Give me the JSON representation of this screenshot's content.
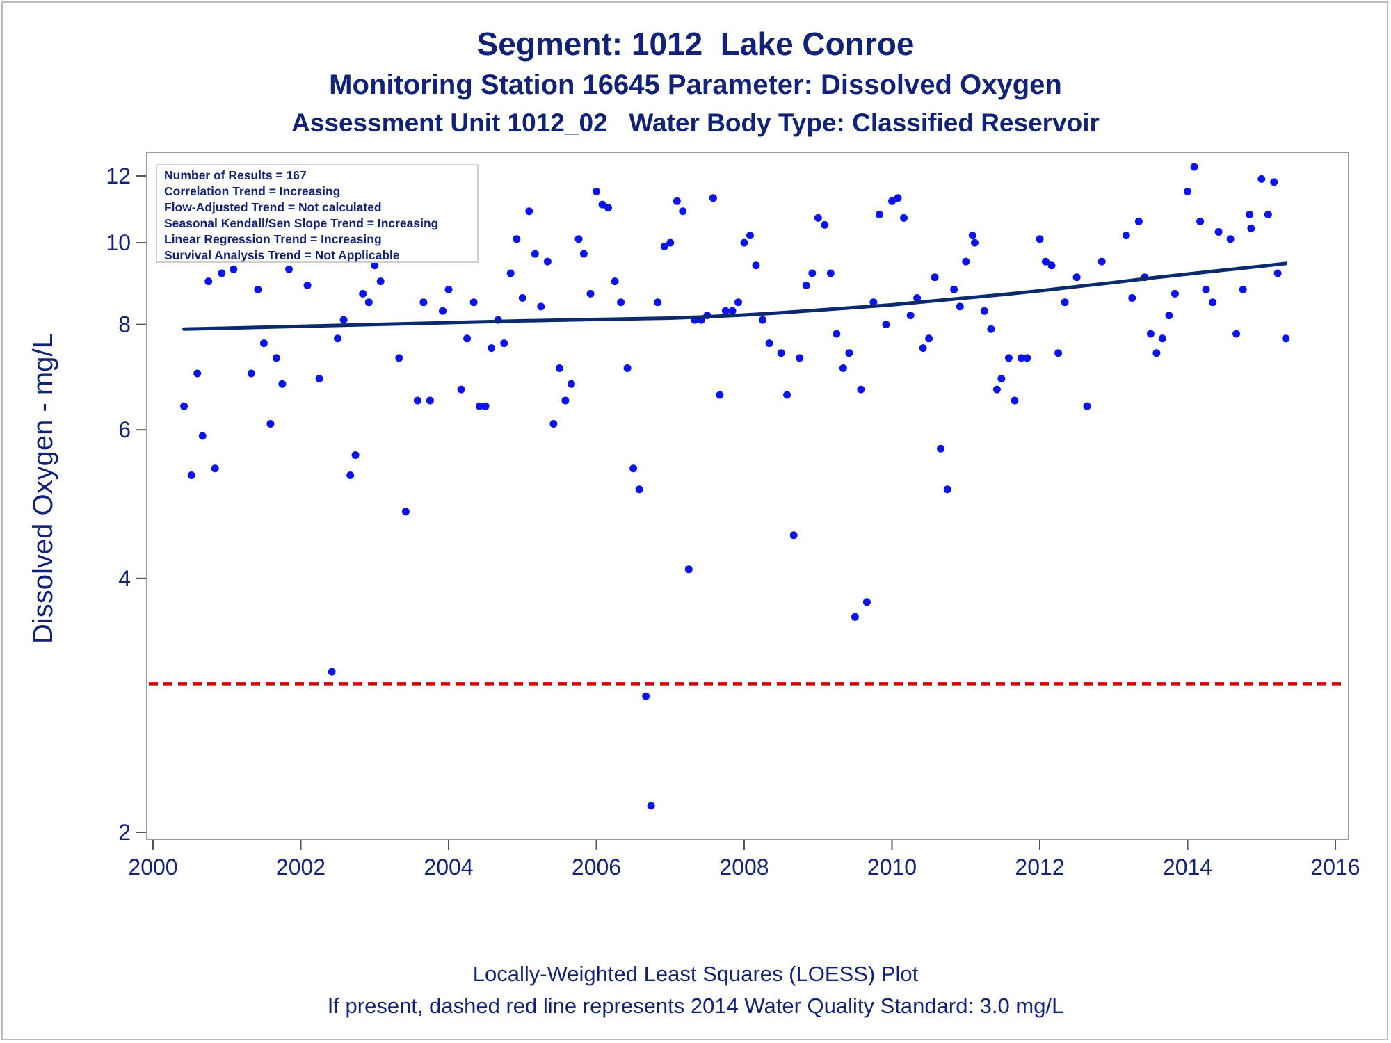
{
  "chart_data": {
    "type": "scatter",
    "title": "Segment: 1012  Lake Conroe",
    "subtitles": [
      "Monitoring Station 16645 Parameter: Dissolved Oxygen",
      "Assessment Unit 1012_02   Water Body Type: Classified Reservoir"
    ],
    "xlabel": "",
    "ylabel": "Dissolved Oxygen - mg/L",
    "xlim": [
      2000,
      2016.1
    ],
    "ylim": [
      1.9,
      12.8
    ],
    "y_scale": "log",
    "x_ticks": [
      2000,
      2002,
      2004,
      2006,
      2008,
      2010,
      2012,
      2014,
      2016
    ],
    "y_ticks": [
      2,
      4,
      6,
      8,
      10,
      12
    ],
    "grid": false,
    "legend": "none",
    "stats_box": {
      "placement": "top-left",
      "lines": [
        "Number of Results = 167",
        "Correlation Trend = Increasing",
        "Flow-Adjusted Trend = Not calculated",
        "Seasonal Kendall/Sen Slope Trend = Increasing",
        "Linear Regression Trend = Increasing",
        "Survival Analysis Trend = Not Applicable"
      ]
    },
    "series": [
      {
        "kind": "points",
        "color": "#0a14e6",
        "points": [
          [
            2000.42,
            6.4
          ],
          [
            2000.52,
            5.3
          ],
          [
            2000.6,
            7.0
          ],
          [
            2000.67,
            5.9
          ],
          [
            2000.75,
            9.0
          ],
          [
            2000.84,
            5.4
          ],
          [
            2000.93,
            9.2
          ],
          [
            2001.0,
            11.1
          ],
          [
            2001.09,
            9.3
          ],
          [
            2001.17,
            9.7
          ],
          [
            2001.26,
            11.1
          ],
          [
            2001.33,
            7.0
          ],
          [
            2001.42,
            8.8
          ],
          [
            2001.5,
            7.6
          ],
          [
            2001.59,
            6.1
          ],
          [
            2001.67,
            7.3
          ],
          [
            2001.75,
            6.8
          ],
          [
            2001.84,
            9.3
          ],
          [
            2002.0,
            10.0
          ],
          [
            2002.09,
            8.9
          ],
          [
            2002.17,
            9.8
          ],
          [
            2002.25,
            6.9
          ],
          [
            2002.42,
            3.1
          ],
          [
            2002.5,
            7.7
          ],
          [
            2002.58,
            8.1
          ],
          [
            2002.67,
            5.3
          ],
          [
            2002.74,
            5.6
          ],
          [
            2002.84,
            8.7
          ],
          [
            2002.92,
            8.5
          ],
          [
            2003.0,
            9.4
          ],
          [
            2003.08,
            9.0
          ],
          [
            2003.16,
            10.4
          ],
          [
            2003.25,
            9.6
          ],
          [
            2003.33,
            7.3
          ],
          [
            2003.42,
            4.8
          ],
          [
            2003.58,
            6.5
          ],
          [
            2003.66,
            8.5
          ],
          [
            2003.75,
            6.5
          ],
          [
            2003.84,
            10.4
          ],
          [
            2003.92,
            8.3
          ],
          [
            2004.0,
            8.8
          ],
          [
            2004.09,
            10.3
          ],
          [
            2004.17,
            6.7
          ],
          [
            2004.25,
            7.7
          ],
          [
            2004.34,
            8.5
          ],
          [
            2004.42,
            6.4
          ],
          [
            2004.5,
            6.4
          ],
          [
            2004.58,
            7.5
          ],
          [
            2004.67,
            8.1
          ],
          [
            2004.75,
            7.6
          ],
          [
            2004.84,
            9.2
          ],
          [
            2004.92,
            10.1
          ],
          [
            2005.0,
            8.6
          ],
          [
            2005.09,
            10.9
          ],
          [
            2005.17,
            9.7
          ],
          [
            2005.25,
            8.4
          ],
          [
            2005.34,
            9.5
          ],
          [
            2005.42,
            6.1
          ],
          [
            2005.5,
            7.1
          ],
          [
            2005.58,
            6.5
          ],
          [
            2005.66,
            6.8
          ],
          [
            2005.76,
            10.1
          ],
          [
            2005.83,
            9.7
          ],
          [
            2005.92,
            8.7
          ],
          [
            2006.0,
            11.5
          ],
          [
            2006.08,
            11.1
          ],
          [
            2006.16,
            11.0
          ],
          [
            2006.25,
            9.0
          ],
          [
            2006.33,
            8.5
          ],
          [
            2006.42,
            7.1
          ],
          [
            2006.5,
            5.4
          ],
          [
            2006.58,
            5.1
          ],
          [
            2006.67,
            2.9
          ],
          [
            2006.74,
            2.15
          ],
          [
            2006.83,
            8.5
          ],
          [
            2006.92,
            9.9
          ],
          [
            2007.0,
            10.0
          ],
          [
            2007.09,
            11.2
          ],
          [
            2007.17,
            10.9
          ],
          [
            2007.25,
            4.1
          ],
          [
            2007.33,
            8.1
          ],
          [
            2007.42,
            8.1
          ],
          [
            2007.5,
            8.2
          ],
          [
            2007.58,
            11.3
          ],
          [
            2007.67,
            6.6
          ],
          [
            2007.75,
            8.3
          ],
          [
            2007.84,
            8.3
          ],
          [
            2007.92,
            8.5
          ],
          [
            2008.0,
            10.0
          ],
          [
            2008.08,
            10.2
          ],
          [
            2008.16,
            9.4
          ],
          [
            2008.25,
            8.1
          ],
          [
            2008.34,
            7.6
          ],
          [
            2008.5,
            7.4
          ],
          [
            2008.58,
            6.6
          ],
          [
            2008.67,
            4.5
          ],
          [
            2008.75,
            7.3
          ],
          [
            2008.84,
            8.9
          ],
          [
            2008.92,
            9.2
          ],
          [
            2009.0,
            10.7
          ],
          [
            2009.09,
            10.5
          ],
          [
            2009.17,
            9.2
          ],
          [
            2009.25,
            7.8
          ],
          [
            2009.34,
            7.1
          ],
          [
            2009.42,
            7.4
          ],
          [
            2009.5,
            3.6
          ],
          [
            2009.58,
            6.7
          ],
          [
            2009.66,
            3.75
          ],
          [
            2009.75,
            8.5
          ],
          [
            2009.83,
            10.8
          ],
          [
            2009.92,
            8.0
          ],
          [
            2010.0,
            11.2
          ],
          [
            2010.08,
            11.3
          ],
          [
            2010.16,
            10.7
          ],
          [
            2010.25,
            8.2
          ],
          [
            2010.34,
            8.6
          ],
          [
            2010.42,
            7.5
          ],
          [
            2010.5,
            7.7
          ],
          [
            2010.58,
            9.1
          ],
          [
            2010.66,
            5.7
          ],
          [
            2010.75,
            5.1
          ],
          [
            2010.84,
            8.8
          ],
          [
            2010.92,
            8.4
          ],
          [
            2011.0,
            9.5
          ],
          [
            2011.09,
            10.2
          ],
          [
            2011.12,
            10.0
          ],
          [
            2011.25,
            8.3
          ],
          [
            2011.34,
            7.9
          ],
          [
            2011.42,
            6.7
          ],
          [
            2011.48,
            6.9
          ],
          [
            2011.58,
            7.3
          ],
          [
            2011.66,
            6.5
          ],
          [
            2011.75,
            7.3
          ],
          [
            2011.83,
            7.3
          ],
          [
            2012.0,
            10.1
          ],
          [
            2012.08,
            9.5
          ],
          [
            2012.16,
            9.4
          ],
          [
            2012.25,
            7.4
          ],
          [
            2012.34,
            8.5
          ],
          [
            2012.5,
            9.1
          ],
          [
            2012.64,
            6.4
          ],
          [
            2012.84,
            9.5
          ],
          [
            2013.17,
            10.2
          ],
          [
            2013.25,
            8.6
          ],
          [
            2013.34,
            10.6
          ],
          [
            2013.42,
            9.1
          ],
          [
            2013.5,
            7.8
          ],
          [
            2013.58,
            7.4
          ],
          [
            2013.66,
            7.7
          ],
          [
            2013.75,
            8.2
          ],
          [
            2013.83,
            8.7
          ],
          [
            2014.0,
            11.5
          ],
          [
            2014.09,
            12.3
          ],
          [
            2014.17,
            10.6
          ],
          [
            2014.25,
            8.8
          ],
          [
            2014.34,
            8.5
          ],
          [
            2014.42,
            10.3
          ],
          [
            2014.58,
            10.1
          ],
          [
            2014.66,
            7.8
          ],
          [
            2014.75,
            8.8
          ],
          [
            2014.84,
            10.8
          ],
          [
            2014.86,
            10.4
          ],
          [
            2015.0,
            11.9
          ],
          [
            2015.09,
            10.8
          ],
          [
            2015.17,
            11.8
          ],
          [
            2015.22,
            9.2
          ],
          [
            2015.33,
            7.7
          ]
        ]
      },
      {
        "kind": "loess-line",
        "color": "#0b2a6e",
        "x": [
          2000.42,
          2001.0,
          2002.0,
          2003.0,
          2004.0,
          2005.0,
          2006.0,
          2007.0,
          2007.5,
          2008.0,
          2008.5,
          2009.0,
          2009.5,
          2010.0,
          2010.5,
          2011.0,
          2011.5,
          2012.0,
          2012.5,
          2013.0,
          2013.5,
          2014.0,
          2014.5,
          2015.0,
          2015.33
        ],
        "y": [
          7.9,
          7.92,
          7.96,
          8.0,
          8.04,
          8.08,
          8.11,
          8.14,
          8.17,
          8.21,
          8.26,
          8.32,
          8.38,
          8.44,
          8.52,
          8.6,
          8.68,
          8.77,
          8.87,
          8.97,
          9.08,
          9.18,
          9.28,
          9.38,
          9.45
        ]
      },
      {
        "kind": "standard-line",
        "color": "#d40000",
        "y": 3.0
      }
    ]
  },
  "footnotes": [
    "Locally-Weighted Least Squares (LOESS) Plot",
    "If present, dashed red line represents 2014 Water Quality Standard: 3.0 mg/L"
  ]
}
